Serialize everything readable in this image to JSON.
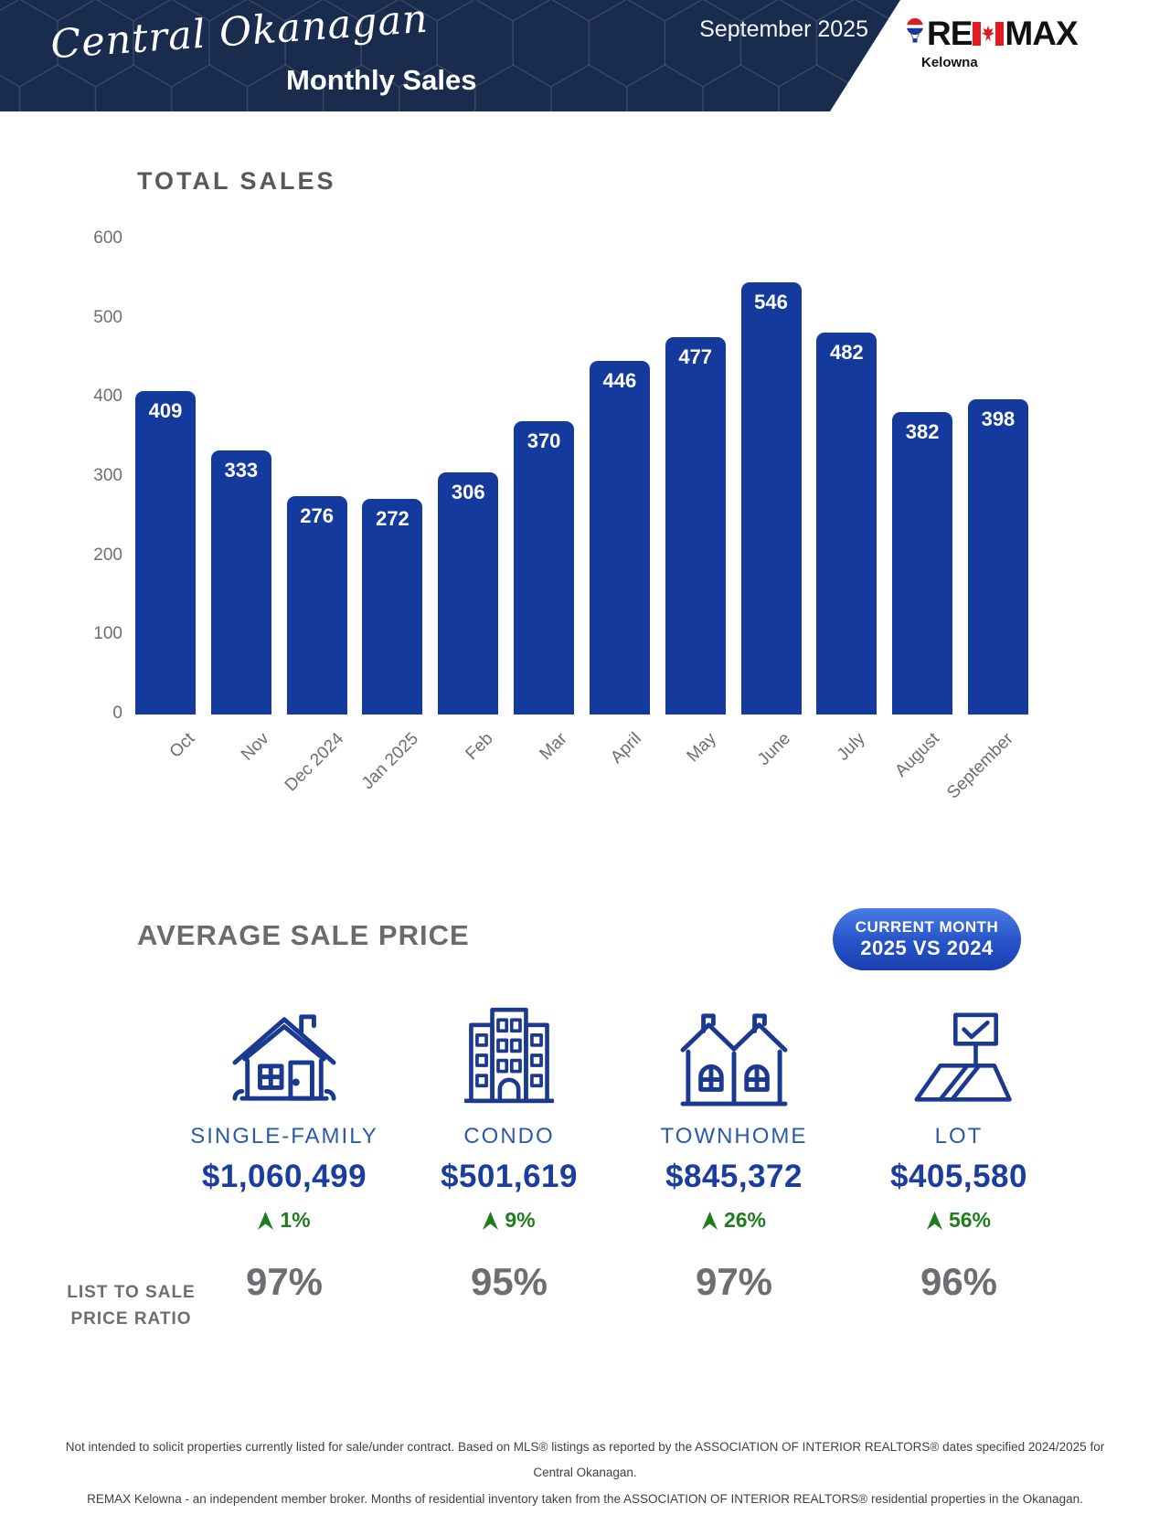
{
  "header": {
    "region_script": "Central Okanagan",
    "title": "Monthly Sales",
    "report_month": "September 2025",
    "logo": {
      "re": "RE",
      "max": "MAX",
      "office": "Kelowna"
    }
  },
  "chart_data": {
    "type": "bar",
    "title": "TOTAL SALES",
    "categories": [
      "Oct",
      "Nov",
      "Dec 2024",
      "Jan 2025",
      "Feb",
      "Mar",
      "April",
      "May",
      "June",
      "July",
      "August",
      "September"
    ],
    "values": [
      409,
      333,
      276,
      272,
      306,
      370,
      446,
      477,
      546,
      482,
      382,
      398
    ],
    "xlabel": "",
    "ylabel": "",
    "ylim": [
      0,
      600
    ],
    "yticks": [
      0,
      100,
      200,
      300,
      400,
      500,
      600
    ],
    "grid": false,
    "legend": "none",
    "bar_color": "#143a9e",
    "value_label_style": "white-inside-top"
  },
  "average_sale_price": {
    "title": "AVERAGE SALE PRICE",
    "badge": {
      "line1": "CURRENT MONTH",
      "line2": "2025 VS 2024"
    },
    "items": [
      {
        "icon": "single-family-house-icon",
        "label": "SINGLE-FAMILY",
        "price": "$1,060,499",
        "change_direction": "up",
        "change": "1%",
        "list_to_sale_ratio": "97%"
      },
      {
        "icon": "condo-building-icon",
        "label": "CONDO",
        "price": "$501,619",
        "change_direction": "up",
        "change": "9%",
        "list_to_sale_ratio": "95%"
      },
      {
        "icon": "townhome-icon",
        "label": "TOWNHOME",
        "price": "$845,372",
        "change_direction": "up",
        "change": "26%",
        "list_to_sale_ratio": "97%"
      },
      {
        "icon": "lot-sign-icon",
        "label": "LOT",
        "price": "$405,580",
        "change_direction": "up",
        "change": "56%",
        "list_to_sale_ratio": "96%"
      }
    ],
    "ratio_label_line1": "LIST TO SALE",
    "ratio_label_line2": "PRICE RATIO"
  },
  "footer": {
    "line1": "Not intended to solicit properties currently listed for sale/under contract. Based on MLS® listings as reported by the ASSOCIATION OF INTERIOR REALTORS® dates specified 2024/2025 for Central Okanagan.",
    "line2": "REMAX Kelowna - an independent member broker. Months of residential inventory taken from the ASSOCIATION OF INTERIOR REALTORS® residential properties in the Okanagan."
  },
  "colors": {
    "header_navy": "#1a2c4e",
    "bar_blue": "#143a9e",
    "category_label_blue": "#2b5aa9",
    "price_navy": "#1b3d9e",
    "positive_green": "#1f7d1f",
    "text_gray": "#58595b",
    "badge_blue_top": "#4a7ce2",
    "badge_blue_bottom": "#1a3fb0",
    "remax_red": "#e11b22"
  }
}
